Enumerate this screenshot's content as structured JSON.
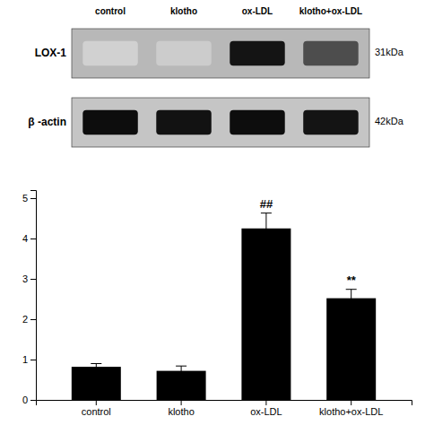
{
  "chart_data": [
    {
      "type": "blot",
      "categories": [
        "control",
        "klotho",
        "ox-LDL",
        "klotho+ox-LDL"
      ],
      "rows": [
        {
          "name": "LOX-1",
          "label": "31kDa",
          "color": "#b8b8b8",
          "colors": [
            "#d1d1d1",
            "#cccccc",
            "#141414",
            "#4d4d4d"
          ]
        },
        {
          "name": "β -actin",
          "label": "42kDa",
          "color": "#c5c5c5",
          "colors": [
            "#0d0d0d",
            "#121212",
            "#0d0d0d",
            "#141414"
          ]
        }
      ]
    },
    {
      "type": "bar",
      "categories": [
        "control",
        "klotho",
        "ox-LDL",
        "klotho+ox-LDL"
      ],
      "values": [
        0.82,
        0.72,
        4.25,
        2.52
      ],
      "errors": [
        0.08,
        0.12,
        0.38,
        0.22
      ],
      "color": "#000000",
      "ylim": [
        0,
        5.2
      ],
      "yticks": [
        0,
        1,
        2,
        3,
        4,
        5
      ],
      "annotations": [
        {
          "index": 2,
          "text": "##"
        },
        {
          "index": 3,
          "text": "**"
        }
      ]
    }
  ]
}
